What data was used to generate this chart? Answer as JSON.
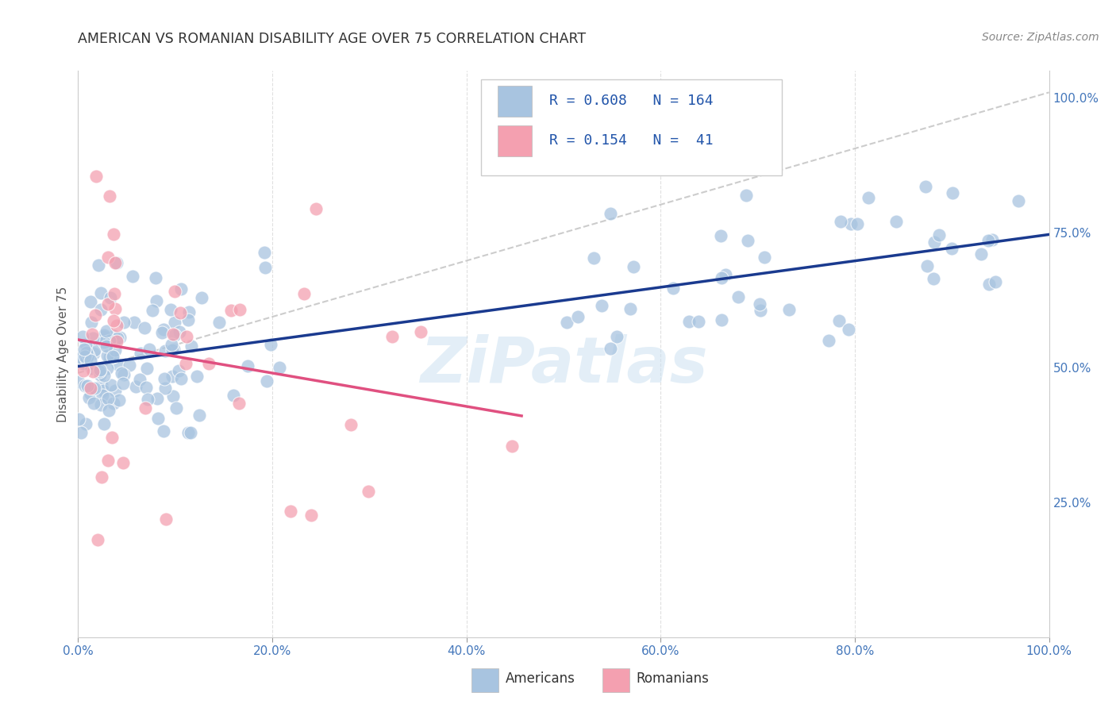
{
  "title": "AMERICAN VS ROMANIAN DISABILITY AGE OVER 75 CORRELATION CHART",
  "source": "Source: ZipAtlas.com",
  "ylabel": "Disability Age Over 75",
  "watermark": "ZiPatlas",
  "xlim": [
    0,
    1
  ],
  "ylim": [
    0,
    1.05
  ],
  "xticks": [
    0.0,
    0.2,
    0.4,
    0.6,
    0.8,
    1.0
  ],
  "yticks_right": [
    0.25,
    0.5,
    0.75,
    1.0
  ],
  "ytick_labels_right": [
    "25.0%",
    "50.0%",
    "75.0%",
    "100.0%"
  ],
  "xtick_labels": [
    "0.0%",
    "20.0%",
    "40.0%",
    "60.0%",
    "80.0%",
    "100.0%"
  ],
  "american_color": "#a8c4e0",
  "romanian_color": "#f4a0b0",
  "american_line_color": "#1a3a8f",
  "romanian_line_color": "#e05080",
  "dashed_line_color": "#c0c0c0",
  "R_american": 0.608,
  "N_american": 164,
  "R_romanian": 0.154,
  "N_romanian": 41,
  "background_color": "#ffffff",
  "grid_color": "#e0e0e0",
  "legend_R1": "R = 0.608",
  "legend_N1": "N = 164",
  "legend_R2": "R = 0.154",
  "legend_N2": "N =  41"
}
